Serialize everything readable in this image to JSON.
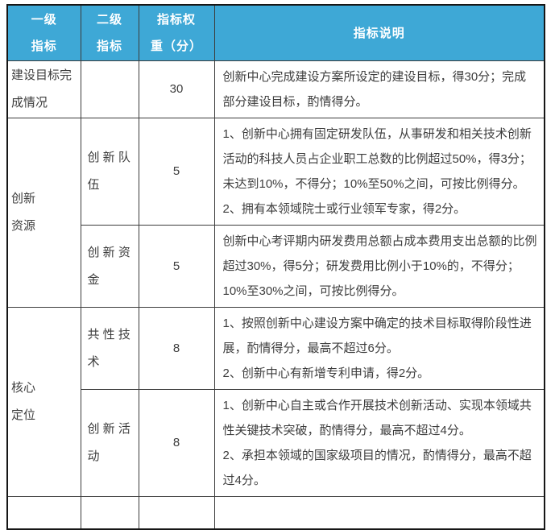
{
  "table": {
    "title_semantic": "innovation-center-evaluation-indicator-table",
    "columns": [
      {
        "label": "一级\n指标"
      },
      {
        "label": "二级\n指标"
      },
      {
        "label": "指标权\n重（分）"
      },
      {
        "label": "指标说明"
      }
    ],
    "rows": [
      {
        "level1": "建设目标完\n成情况",
        "level2": "",
        "weight": "30",
        "description": "创新中心完成建设方案所设定的建设目标，得30分；完成部分建设目标，酌情得分。"
      },
      {
        "level1": "创新\n资源",
        "level2": "创 新 队\n伍",
        "weight": "5",
        "description": "1、创新中心拥有固定研发队伍，从事研发和相关技术创新活动的科技人员占企业职工总数的比例超过50%，得3分；未达到10%，不得分；10%至50%之间，可按比例得分。\n2、拥有本领域院士或行业领军专家，得2分。"
      },
      {
        "level2": "创 新 资\n金",
        "weight": "5",
        "description": "创新中心考评期内研发费用总额占成本费用支出总额的比例超过30%，得5分；研发费用比例小于10%的，不得分；10%至30%之间，可按比例得分。"
      },
      {
        "level1": "核心\n定位",
        "level2": "共 性 技\n术",
        "weight": "8",
        "description": "1、按照创新中心建设方案中确定的技术目标取得阶段性进展，酌情得分，最高不超过6分。\n2、创新中心有新增专利申请，得2分。"
      },
      {
        "level2": "创 新 活\n动",
        "weight": "8",
        "description": "1、创新中心自主或合作开展技术创新活动、实现本领域共性关键技术突破，酌情得分，最高不超过4分。\n2、承担本领域的国家级项目的情况，酌情得分，最高不超过4分。"
      }
    ],
    "colors": {
      "header_bg": "#3ea8d6",
      "header_text": "#ffffff",
      "body_text": "#3d3d3d",
      "border": "#3c3c3c"
    }
  }
}
